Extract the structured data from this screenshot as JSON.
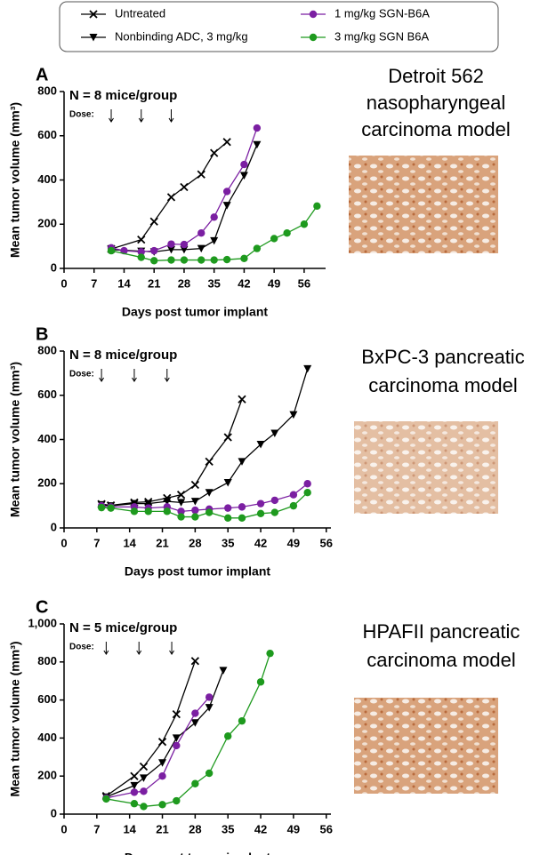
{
  "chart_data": [
    {
      "type": "line",
      "panel": "A",
      "annotation": "N = 8 mice/group",
      "dose_label": "Dose:",
      "dose_days": [
        11,
        18,
        25
      ],
      "xlabel": "Days post tumor implant",
      "ylabel": "Mean tumor volume (mm³)",
      "xlim": [
        0,
        61
      ],
      "ylim": [
        0,
        800
      ],
      "xticks": [
        0,
        7,
        14,
        21,
        28,
        35,
        42,
        49,
        56
      ],
      "yticks": [
        0,
        200,
        400,
        600,
        800
      ],
      "caption_lines": [
        "Detroit 562",
        "nasopharyngeal",
        "carcinoma model"
      ],
      "series": [
        {
          "name": "Untreated",
          "color": "#000000",
          "marker": "x",
          "x": [
            11,
            18,
            21,
            25,
            28,
            32,
            35,
            38
          ],
          "values": [
            88,
            130,
            212,
            322,
            368,
            425,
            522,
            572
          ]
        },
        {
          "name": "Nonbinding ADC, 3 mg/kg",
          "color": "#000000",
          "marker": "triangle-down",
          "x": [
            11,
            18,
            21,
            25,
            28,
            32,
            35,
            38,
            42,
            45
          ],
          "values": [
            85,
            78,
            75,
            85,
            85,
            90,
            125,
            285,
            420,
            560
          ]
        },
        {
          "name": "1 mg/kg SGN-B6A",
          "color": "#7b1fa2",
          "marker": "circle",
          "x": [
            11,
            14,
            18,
            21,
            25,
            28,
            32,
            35,
            38,
            42,
            45
          ],
          "values": [
            93,
            80,
            75,
            80,
            110,
            108,
            160,
            232,
            348,
            470,
            635
          ]
        },
        {
          "name": "3 mg/kg SGN B6A",
          "color": "#1e9a1e",
          "marker": "circle",
          "x": [
            11,
            18,
            21,
            25,
            28,
            32,
            35,
            38,
            42,
            45,
            49,
            52,
            56,
            59
          ],
          "values": [
            80,
            50,
            35,
            38,
            38,
            38,
            38,
            40,
            45,
            90,
            135,
            160,
            200,
            282
          ]
        }
      ]
    },
    {
      "type": "line",
      "panel": "B",
      "annotation": "N = 8 mice/group",
      "dose_label": "Dose:",
      "dose_days": [
        8,
        15,
        22
      ],
      "xlabel": "Days post tumor implant",
      "ylabel": "Mean tumor volume (mm³)",
      "xlim": [
        0,
        57
      ],
      "ylim": [
        0,
        800
      ],
      "xticks": [
        0,
        7,
        14,
        21,
        28,
        35,
        42,
        49,
        56
      ],
      "yticks": [
        0,
        200,
        400,
        600,
        800
      ],
      "caption_lines": [
        "BxPC-3 pancreatic",
        "carcinoma model"
      ],
      "series": [
        {
          "color": "#000000",
          "marker": "x",
          "x": [
            8,
            10,
            15,
            18,
            22,
            25,
            28,
            31,
            35,
            38
          ],
          "values": [
            108,
            102,
            115,
            118,
            135,
            150,
            195,
            300,
            410,
            582
          ]
        },
        {
          "color": "#000000",
          "marker": "triangle-down",
          "x": [
            8,
            10,
            15,
            18,
            22,
            25,
            28,
            31,
            35,
            38,
            42,
            45,
            49,
            52
          ],
          "values": [
            105,
            100,
            110,
            110,
            120,
            115,
            120,
            160,
            205,
            300,
            378,
            428,
            512,
            720
          ]
        },
        {
          "color": "#7b1fa2",
          "marker": "circle",
          "x": [
            8,
            10,
            15,
            18,
            22,
            25,
            28,
            31,
            35,
            38,
            42,
            45,
            49,
            52
          ],
          "values": [
            100,
            95,
            95,
            90,
            95,
            75,
            80,
            85,
            90,
            95,
            110,
            125,
            150,
            200
          ]
        },
        {
          "color": "#1e9a1e",
          "marker": "circle",
          "x": [
            8,
            10,
            15,
            18,
            22,
            25,
            28,
            31,
            35,
            38,
            42,
            45,
            49,
            52
          ],
          "values": [
            92,
            90,
            75,
            75,
            75,
            50,
            50,
            70,
            45,
            45,
            65,
            70,
            100,
            160
          ]
        }
      ]
    },
    {
      "type": "line",
      "panel": "C",
      "annotation": "N = 5 mice/group",
      "dose_label": "Dose:",
      "dose_days": [
        9,
        16,
        23
      ],
      "xlabel": "Days post tumor implant",
      "ylabel": "Mean tumor volume (mm³)",
      "xlim": [
        0,
        57
      ],
      "ylim": [
        0,
        1000
      ],
      "xticks": [
        0,
        7,
        14,
        21,
        28,
        35,
        42,
        49,
        56
      ],
      "yticks": [
        0,
        200,
        400,
        600,
        800,
        {
          "value": 1000,
          "label": "1,000"
        }
      ],
      "caption_lines": [
        "HPAFII pancreatic",
        "carcinoma model"
      ],
      "series": [
        {
          "color": "#000000",
          "marker": "x",
          "x": [
            9,
            15,
            17,
            21,
            24,
            28
          ],
          "values": [
            95,
            200,
            250,
            380,
            525,
            805
          ]
        },
        {
          "color": "#000000",
          "marker": "triangle-down",
          "x": [
            9,
            15,
            17,
            21,
            24,
            28,
            31,
            34
          ],
          "values": [
            90,
            150,
            190,
            270,
            400,
            480,
            560,
            755
          ]
        },
        {
          "color": "#7b1fa2",
          "marker": "circle",
          "x": [
            9,
            15,
            17,
            21,
            24,
            28,
            31
          ],
          "values": [
            85,
            115,
            120,
            200,
            360,
            530,
            615
          ]
        },
        {
          "color": "#1e9a1e",
          "marker": "circle",
          "x": [
            9,
            15,
            17,
            21,
            24,
            28,
            31,
            35,
            38,
            42,
            44
          ],
          "values": [
            80,
            55,
            40,
            50,
            70,
            160,
            215,
            410,
            490,
            695,
            845
          ]
        }
      ]
    }
  ]
}
